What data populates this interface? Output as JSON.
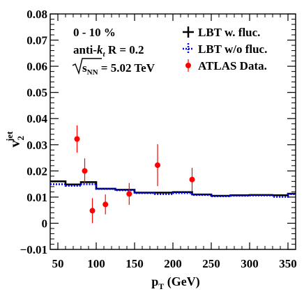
{
  "chart_data": {
    "type": "line",
    "xlabel": {
      "main": "p",
      "sub": "T",
      "tail": " (GeV)"
    },
    "ylabel": {
      "main": "v",
      "sub": "2",
      "sup": "jet"
    },
    "xlim": [
      40,
      360
    ],
    "ylim": [
      -0.01,
      0.08
    ],
    "x_ticks": [
      50,
      100,
      150,
      200,
      250,
      300,
      350
    ],
    "x_tick_labels": [
      "50",
      "100",
      "150",
      "200",
      "250",
      "300",
      "350"
    ],
    "y_ticks": [
      -0.01,
      0,
      0.01,
      0.02,
      0.03,
      0.04,
      0.05,
      0.06,
      0.07,
      0.08
    ],
    "y_tick_labels": [
      "−0.01",
      "0",
      "0.01",
      "0.02",
      "0.03",
      "0.04",
      "0.05",
      "0.06",
      "0.07",
      "0.08"
    ],
    "grid": false,
    "annotations": {
      "centrality": "0 - 10 %",
      "jet_algo_prefix": "anti-",
      "jet_algo_k": "k",
      "jet_algo_sub": "t",
      "jet_radius": " R = 0.2",
      "energy_s": "s",
      "energy_sub": "NN",
      "energy_value": " = 5.02 TeV"
    },
    "legend": {
      "placement": "top-right",
      "entries": [
        "LBT w. fluc.",
        "LBT w/o fluc.",
        "ATLAS Data."
      ]
    },
    "series": [
      {
        "name": "LBT w. fluc.",
        "style": "histogram-solid",
        "color": "#000000",
        "edges": [
          40,
          60,
          80,
          100,
          125,
          150,
          175,
          200,
          225,
          250,
          275,
          300,
          330,
          350,
          360
        ],
        "values": [
          0.016,
          0.0148,
          0.0157,
          0.0132,
          0.0128,
          0.0117,
          0.0117,
          0.0119,
          0.011,
          0.0105,
          0.0107,
          0.0108,
          0.0107,
          0.0113
        ]
      },
      {
        "name": "LBT w/o fluc.",
        "style": "histogram-dotted",
        "color": "#0000ff",
        "edges": [
          40,
          60,
          80,
          100,
          125,
          150,
          175,
          200,
          225,
          250,
          275,
          300,
          330,
          350,
          360
        ],
        "values": [
          0.0149,
          0.0143,
          0.0149,
          0.0131,
          0.0126,
          0.0115,
          0.0111,
          0.0115,
          0.0108,
          0.0103,
          0.0105,
          0.0106,
          0.0101,
          0.0111
        ]
      },
      {
        "name": "ATLAS Data.",
        "style": "points-errorbars",
        "color": "#ff0000",
        "x": [
          75,
          85,
          95,
          112,
          143,
          180,
          225
        ],
        "y": [
          0.0322,
          0.02,
          0.0048,
          0.0072,
          0.0112,
          0.0222,
          0.0167
        ],
        "err": [
          0.0052,
          0.0048,
          0.0048,
          0.0038,
          0.0042,
          0.008,
          0.0045
        ]
      }
    ]
  }
}
